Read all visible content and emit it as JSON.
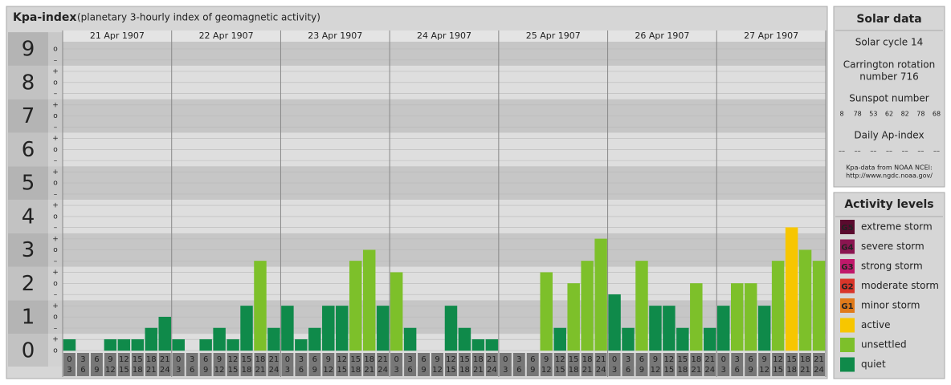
{
  "chart_data": {
    "type": "bar",
    "title": "Kpa-index",
    "subtitle": "(planetary 3-hourly index of geomagnetic activity)",
    "ylim": [
      0,
      9
    ],
    "yticks": [
      0,
      1,
      2,
      3,
      4,
      5,
      6,
      7,
      8,
      9
    ],
    "minor_ticks": [
      {
        "value": 0,
        "label": "o"
      },
      {
        "value": 0.33,
        "label": "+"
      },
      {
        "value": 0.67,
        "label": "–"
      },
      {
        "value": 1,
        "label": "o"
      },
      {
        "value": 1.33,
        "label": "+"
      },
      {
        "value": 1.67,
        "label": "–"
      },
      {
        "value": 2,
        "label": "o"
      },
      {
        "value": 2.33,
        "label": "+"
      },
      {
        "value": 2.67,
        "label": "–"
      },
      {
        "value": 3,
        "label": "o"
      },
      {
        "value": 3.33,
        "label": "+"
      },
      {
        "value": 3.67,
        "label": "–"
      },
      {
        "value": 4,
        "label": "o"
      },
      {
        "value": 4.33,
        "label": "+"
      },
      {
        "value": 4.67,
        "label": "–"
      },
      {
        "value": 5,
        "label": "o"
      },
      {
        "value": 5.33,
        "label": "+"
      },
      {
        "value": 5.67,
        "label": "–"
      },
      {
        "value": 6,
        "label": "o"
      },
      {
        "value": 6.33,
        "label": "+"
      },
      {
        "value": 6.67,
        "label": "–"
      },
      {
        "value": 7,
        "label": "o"
      },
      {
        "value": 7.33,
        "label": "+"
      },
      {
        "value": 7.67,
        "label": "–"
      },
      {
        "value": 8,
        "label": "o"
      },
      {
        "value": 8.33,
        "label": "+"
      },
      {
        "value": 8.67,
        "label": "–"
      },
      {
        "value": 9,
        "label": "o"
      }
    ],
    "hours": [
      "0",
      "3",
      "6",
      "9",
      "12",
      "15",
      "18",
      "21",
      "24"
    ],
    "days": [
      {
        "date": "21 Apr 1907",
        "values": [
          0.33,
          0,
          0,
          0.33,
          0.33,
          0.33,
          0.67,
          1
        ],
        "colors": [
          "#0f8a4a",
          "#0f8a4a",
          "#0f8a4a",
          "#0f8a4a",
          "#0f8a4a",
          "#0f8a4a",
          "#0f8a4a",
          "#0f8a4a"
        ]
      },
      {
        "date": "22 Apr 1907",
        "values": [
          0.33,
          0,
          0.33,
          0.67,
          0.33,
          1.33,
          2.67,
          0.67
        ],
        "colors": [
          "#0f8a4a",
          "#0f8a4a",
          "#0f8a4a",
          "#0f8a4a",
          "#0f8a4a",
          "#0f8a4a",
          "#7dc02a",
          "#0f8a4a"
        ]
      },
      {
        "date": "23 Apr 1907",
        "values": [
          1.33,
          0.33,
          0.67,
          1.33,
          1.33,
          2.67,
          3,
          1.33
        ],
        "colors": [
          "#0f8a4a",
          "#0f8a4a",
          "#0f8a4a",
          "#0f8a4a",
          "#0f8a4a",
          "#7dc02a",
          "#7dc02a",
          "#0f8a4a"
        ]
      },
      {
        "date": "24 Apr 1907",
        "values": [
          2.33,
          0.67,
          0,
          0,
          1.33,
          0.67,
          0.33,
          0.33
        ],
        "colors": [
          "#7dc02a",
          "#0f8a4a",
          "#0f8a4a",
          "#0f8a4a",
          "#0f8a4a",
          "#0f8a4a",
          "#0f8a4a",
          "#0f8a4a"
        ]
      },
      {
        "date": "25 Apr 1907",
        "values": [
          0,
          0,
          0,
          2.33,
          0.67,
          2,
          2.67,
          3.33
        ],
        "colors": [
          "#0f8a4a",
          "#0f8a4a",
          "#0f8a4a",
          "#7dc02a",
          "#0f8a4a",
          "#7dc02a",
          "#7dc02a",
          "#7dc02a"
        ]
      },
      {
        "date": "26 Apr 1907",
        "values": [
          1.67,
          0.67,
          2.67,
          1.33,
          1.33,
          0.67,
          2,
          0.67
        ],
        "colors": [
          "#0f8a4a",
          "#0f8a4a",
          "#7dc02a",
          "#0f8a4a",
          "#0f8a4a",
          "#0f8a4a",
          "#7dc02a",
          "#0f8a4a"
        ]
      },
      {
        "date": "27 Apr 1907",
        "values": [
          1.33,
          2,
          2,
          1.33,
          2.67,
          3.67,
          3,
          2.67
        ],
        "colors": [
          "#0f8a4a",
          "#7dc02a",
          "#7dc02a",
          "#0f8a4a",
          "#7dc02a",
          "#f7c600",
          "#7dc02a",
          "#7dc02a"
        ]
      }
    ]
  },
  "solar_data": {
    "title": "Solar data",
    "solar_cycle": "Solar cycle 14",
    "carrington": [
      "Carrington rotation",
      "number 716"
    ],
    "sunspot_title": "Sunspot number",
    "sunspot_numbers": [
      8,
      78,
      53,
      62,
      82,
      78,
      68
    ],
    "ap_title": "Daily Ap-index",
    "ap_values": [
      "––",
      "––",
      "––",
      "––",
      "––",
      "––",
      "––"
    ],
    "source": [
      "Kpa-data from NOAA NCEI:",
      "http://www.ngdc.noaa.gov/"
    ]
  },
  "activity_levels": {
    "title": "Activity levels",
    "items": [
      {
        "badge": "G5",
        "label": "extreme storm",
        "color": "#5a0a2e"
      },
      {
        "badge": "G4",
        "label": "severe storm",
        "color": "#8a1550"
      },
      {
        "badge": "G3",
        "label": "strong storm",
        "color": "#c0186a"
      },
      {
        "badge": "G2",
        "label": "moderate storm",
        "color": "#d8352a"
      },
      {
        "badge": "G1",
        "label": "minor storm",
        "color": "#e07a1a"
      },
      {
        "label": "active",
        "color": "#f7c600"
      },
      {
        "label": "unsettled",
        "color": "#7dc02a"
      },
      {
        "label": "quiet",
        "color": "#0f8a4a"
      }
    ]
  }
}
